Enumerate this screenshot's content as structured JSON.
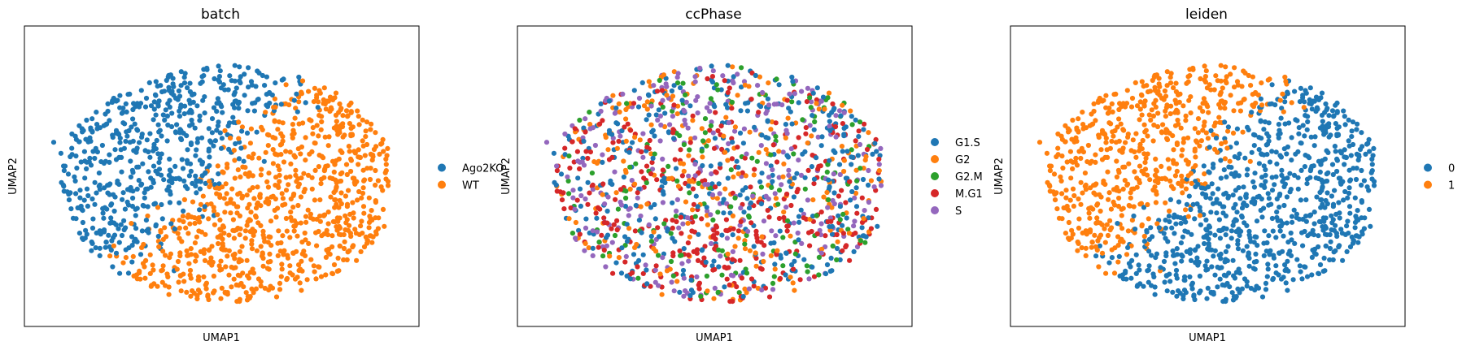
{
  "figure_colors": {
    "blue": "#1f77b4",
    "orange": "#ff7f0e",
    "green": "#2ca02c",
    "red": "#d62728",
    "purple": "#9467bd"
  },
  "chart_data": [
    {
      "type": "scatter",
      "title": "batch",
      "xlabel": "UMAP1",
      "ylabel": "UMAP2",
      "grid": false,
      "ticks": false,
      "xlim": [
        0,
        100
      ],
      "ylim": [
        0,
        100
      ],
      "legend_position": "right-outside",
      "color_mode": "batch",
      "series": [
        {
          "name": "Ago2KO",
          "color": "#1f77b4",
          "approx_count": 720
        },
        {
          "name": "WT",
          "color": "#ff7f0e",
          "approx_count": 660
        }
      ]
    },
    {
      "type": "scatter",
      "title": "ccPhase",
      "xlabel": "UMAP1",
      "ylabel": "UMAP2",
      "grid": false,
      "ticks": false,
      "xlim": [
        0,
        100
      ],
      "ylim": [
        0,
        100
      ],
      "legend_position": "right-outside",
      "color_mode": "phase",
      "series": [
        {
          "name": "G1.S",
          "color": "#1f77b4",
          "approx_count": 420
        },
        {
          "name": "G2",
          "color": "#ff7f0e",
          "approx_count": 250
        },
        {
          "name": "G2.M",
          "color": "#2ca02c",
          "approx_count": 170
        },
        {
          "name": "M.G1",
          "color": "#d62728",
          "approx_count": 300
        },
        {
          "name": "S",
          "color": "#9467bd",
          "approx_count": 240
        }
      ]
    },
    {
      "type": "scatter",
      "title": "leiden",
      "xlabel": "UMAP1",
      "ylabel": "UMAP2",
      "grid": false,
      "ticks": false,
      "xlim": [
        0,
        100
      ],
      "ylim": [
        0,
        100
      ],
      "legend_position": "right-outside",
      "color_mode": "leiden",
      "series": [
        {
          "name": "0",
          "color": "#1f77b4",
          "approx_count": 700
        },
        {
          "name": "1",
          "color": "#ff7f0e",
          "approx_count": 680
        }
      ]
    }
  ]
}
